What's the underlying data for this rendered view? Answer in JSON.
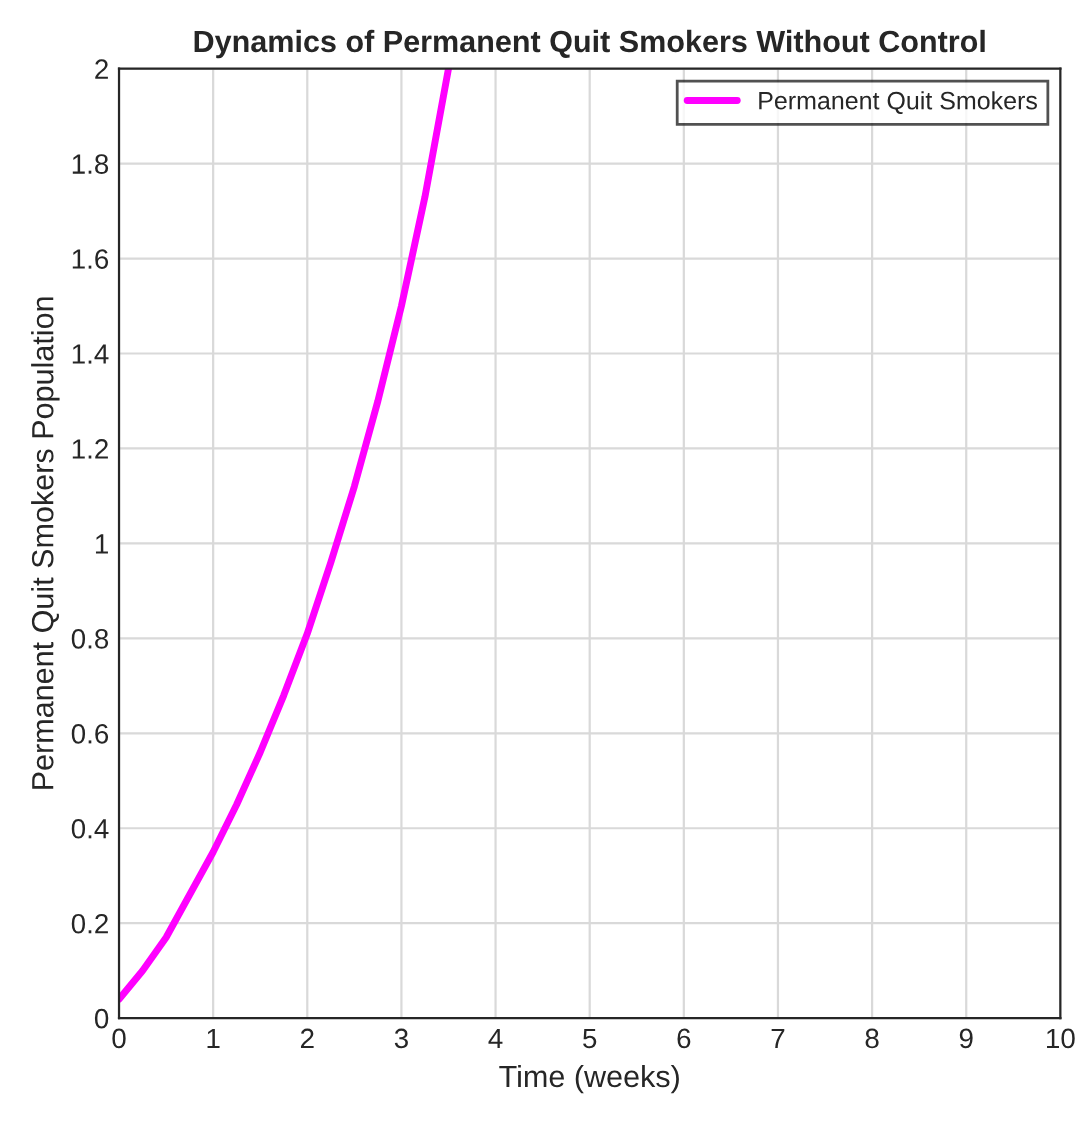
{
  "chart_data": {
    "type": "line",
    "title": "Dynamics of Permanent Quit Smokers Without Control",
    "xlabel": "Time (weeks)",
    "ylabel": "Permanent Quit Smokers Population",
    "x": [
      0,
      0.25,
      0.5,
      0.75,
      1,
      1.25,
      1.5,
      1.75,
      2,
      2.25,
      2.5,
      2.75,
      3,
      3.25,
      3.5
    ],
    "series": [
      {
        "name": "Permanent Quit Smokers",
        "color": "#ff00ff",
        "values": [
          0.04,
          0.1,
          0.17,
          0.26,
          0.35,
          0.45,
          0.56,
          0.68,
          0.81,
          0.96,
          1.12,
          1.3,
          1.5,
          1.73,
          2.0
        ]
      }
    ],
    "xlim": [
      0,
      10
    ],
    "xticks": [
      0,
      1,
      2,
      3,
      4,
      5,
      6,
      7,
      8,
      9,
      10
    ],
    "ylim": [
      0,
      2
    ],
    "yticks": [
      0,
      0.2,
      0.4,
      0.6,
      0.8,
      1,
      1.2,
      1.4,
      1.6,
      1.8,
      2
    ],
    "grid": true,
    "legend": "top right",
    "marker": "none",
    "line_style": "solid"
  }
}
